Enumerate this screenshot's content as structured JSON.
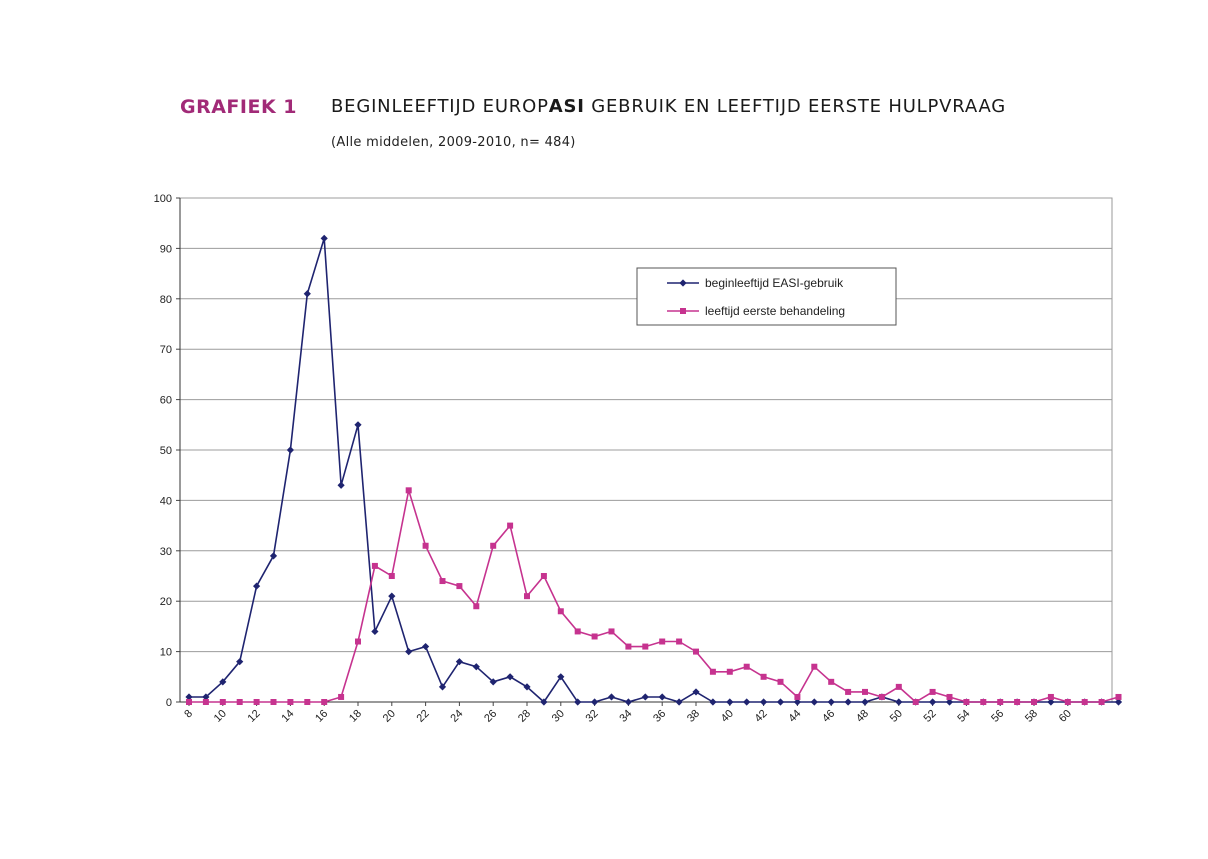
{
  "header": {
    "label": "GRAFIEK 1",
    "title_pre": "BEGINLEEFTIJD EUROP",
    "title_bold": "ASI",
    "title_post": " GEBRUIK EN LEEFTIJD EERSTE HULPVRAAG",
    "subtitle": "(Alle middelen, 2009-2010, n= 484)"
  },
  "chart_data": {
    "type": "line",
    "grid": true,
    "legend_position": "top-right",
    "ylim": [
      0,
      100
    ],
    "yticks": [
      0,
      10,
      20,
      30,
      40,
      50,
      60,
      70,
      80,
      90,
      100
    ],
    "xlim": [
      8,
      63
    ],
    "xticks": [
      8,
      10,
      12,
      14,
      16,
      18,
      20,
      22,
      24,
      26,
      28,
      30,
      32,
      34,
      36,
      38,
      40,
      42,
      44,
      46,
      48,
      50,
      52,
      54,
      56,
      58,
      60
    ],
    "x": [
      8,
      9,
      10,
      11,
      12,
      13,
      14,
      15,
      16,
      17,
      18,
      19,
      20,
      21,
      22,
      23,
      24,
      25,
      26,
      27,
      28,
      29,
      30,
      31,
      32,
      33,
      34,
      35,
      36,
      37,
      38,
      39,
      40,
      41,
      42,
      43,
      44,
      45,
      46,
      47,
      48,
      49,
      50,
      51,
      52,
      53,
      54,
      55,
      56,
      57,
      58,
      59,
      60,
      61,
      62,
      63
    ],
    "series": [
      {
        "name": "beginleeftijd EASI-gebruik",
        "color": "#1f2470",
        "marker": "diamond",
        "values": [
          1,
          1,
          4,
          8,
          23,
          29,
          50,
          81,
          92,
          43,
          55,
          14,
          21,
          10,
          11,
          3,
          8,
          7,
          4,
          5,
          3,
          0,
          5,
          0,
          0,
          1,
          0,
          1,
          1,
          0,
          2,
          0,
          0,
          0,
          0,
          0,
          0,
          0,
          0,
          0,
          0,
          1,
          0,
          0,
          0,
          0,
          0,
          0,
          0,
          0,
          0,
          0,
          0,
          0,
          0,
          0
        ]
      },
      {
        "name": "leeftijd eerste behandeling",
        "color": "#c6338f",
        "marker": "square",
        "values": [
          0,
          0,
          0,
          0,
          0,
          0,
          0,
          0,
          0,
          1,
          12,
          27,
          25,
          42,
          31,
          24,
          23,
          19,
          31,
          35,
          21,
          25,
          18,
          14,
          13,
          14,
          11,
          11,
          12,
          12,
          10,
          6,
          6,
          7,
          5,
          4,
          1,
          7,
          4,
          2,
          2,
          1,
          3,
          0,
          2,
          1,
          0,
          0,
          0,
          0,
          0,
          1,
          0,
          0,
          0,
          1
        ]
      }
    ]
  }
}
